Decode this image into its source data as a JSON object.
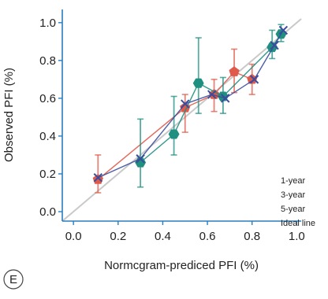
{
  "panel_label": "E",
  "chart_data": {
    "type": "scatter",
    "xlabel": "Normcgram-prediced PFI (%)",
    "ylabel": "Observed PFI (%)",
    "xlim": [
      -0.05,
      1.02
    ],
    "ylim": [
      -0.05,
      1.07
    ],
    "x_ticks": [
      "0.0",
      "0.2",
      "0.4",
      "0.6",
      "0.8",
      "1.0"
    ],
    "x_tick_values": [
      0.0,
      0.2,
      0.4,
      0.6,
      0.8,
      1.0
    ],
    "y_ticks": [
      "0.0",
      "0.2",
      "0.4",
      "0.6",
      "0.8",
      "1.0"
    ],
    "y_tick_values": [
      0.0,
      0.2,
      0.4,
      0.6,
      0.8,
      1.0
    ],
    "legend_position": "right",
    "series": [
      {
        "name": "1-year",
        "color": "#e05a4b",
        "marker": "pentagon",
        "points": [
          {
            "x": 0.11,
            "y": 0.17,
            "lo": 0.1,
            "hi": 0.3
          },
          {
            "x": 0.5,
            "y": 0.55,
            "lo": 0.42,
            "hi": 0.62
          },
          {
            "x": 0.63,
            "y": 0.62,
            "lo": 0.53,
            "hi": 0.7
          },
          {
            "x": 0.72,
            "y": 0.74,
            "lo": 0.63,
            "hi": 0.86
          },
          {
            "x": 0.8,
            "y": 0.7,
            "lo": 0.62,
            "hi": 0.78
          }
        ]
      },
      {
        "name": "3-year",
        "color": "#1f8f80",
        "marker": "hexagon",
        "points": [
          {
            "x": 0.3,
            "y": 0.26,
            "lo": 0.13,
            "hi": 0.49
          },
          {
            "x": 0.45,
            "y": 0.41,
            "lo": 0.3,
            "hi": 0.61
          },
          {
            "x": 0.56,
            "y": 0.68,
            "lo": 0.52,
            "hi": 0.92
          },
          {
            "x": 0.67,
            "y": 0.61,
            "lo": 0.52,
            "hi": 0.71
          },
          {
            "x": 0.89,
            "y": 0.87,
            "lo": 0.81,
            "hi": 0.96
          },
          {
            "x": 0.93,
            "y": 0.94,
            "lo": 0.9,
            "hi": 0.99
          }
        ]
      },
      {
        "name": "5-year",
        "color": "#3a4d9c",
        "marker": "x",
        "points": [
          {
            "x": 0.11,
            "y": 0.18
          },
          {
            "x": 0.3,
            "y": 0.28
          },
          {
            "x": 0.5,
            "y": 0.57
          },
          {
            "x": 0.62,
            "y": 0.62
          },
          {
            "x": 0.68,
            "y": 0.6
          },
          {
            "x": 0.81,
            "y": 0.7
          },
          {
            "x": 0.9,
            "y": 0.88
          },
          {
            "x": 0.94,
            "y": 0.96
          }
        ]
      },
      {
        "name": "Ideal line",
        "color": "#c9c9c9",
        "marker": "line",
        "points": [
          {
            "x": -0.05,
            "y": -0.05
          },
          {
            "x": 1.02,
            "y": 1.02
          }
        ]
      }
    ]
  }
}
